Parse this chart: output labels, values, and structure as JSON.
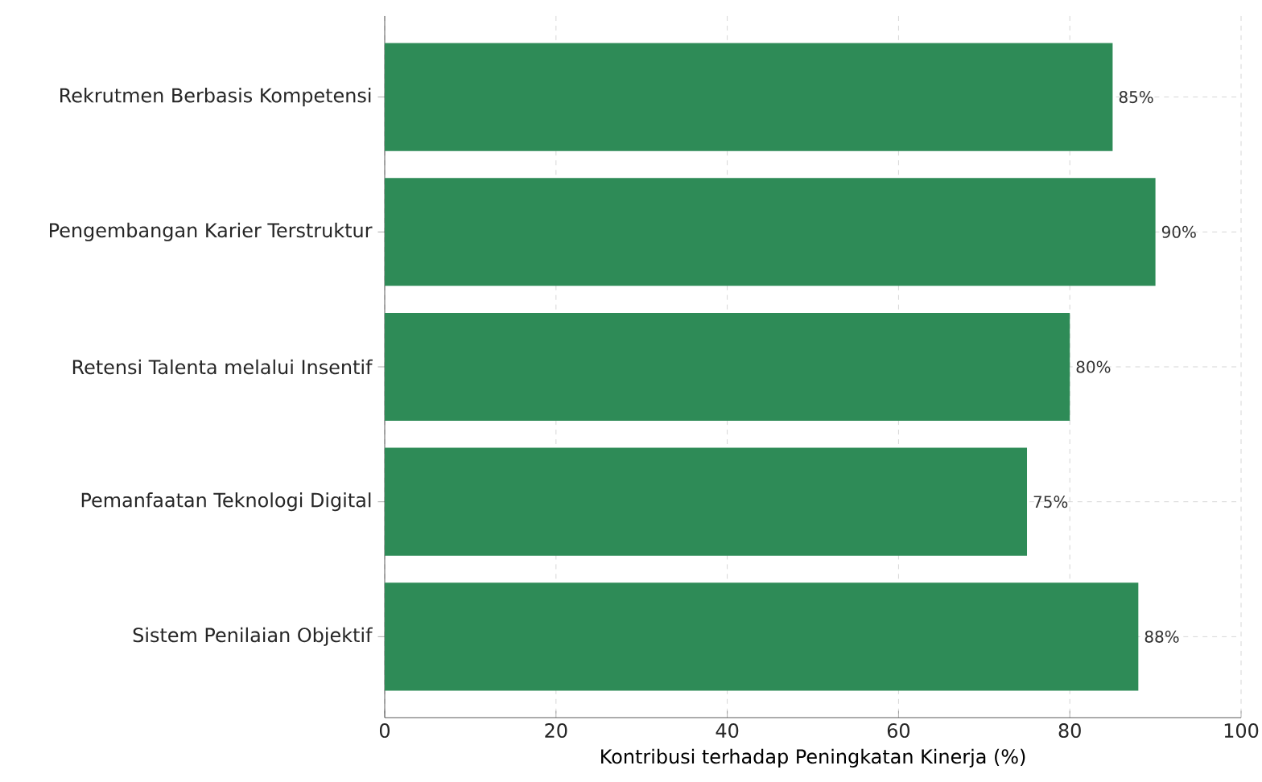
{
  "chart_data": {
    "type": "bar",
    "orientation": "horizontal",
    "xlabel": "Kontribusi terhadap Peningkatan Kinerja (%)",
    "categories": [
      "Rekrutmen Berbasis Kompetensi",
      "Pengembangan Karier Terstruktur",
      "Retensi Talenta melalui Insentif",
      "Pemanfaatan Teknologi Digital",
      "Sistem Penilaian Objektif"
    ],
    "values": [
      85,
      90,
      80,
      75,
      88
    ],
    "value_labels": [
      "85%",
      "90%",
      "80%",
      "75%",
      "88%"
    ],
    "color": "#2e8b57",
    "xlim": [
      0,
      100
    ],
    "xticks": [
      0,
      20,
      40,
      60,
      80,
      100
    ],
    "grid": true
  }
}
